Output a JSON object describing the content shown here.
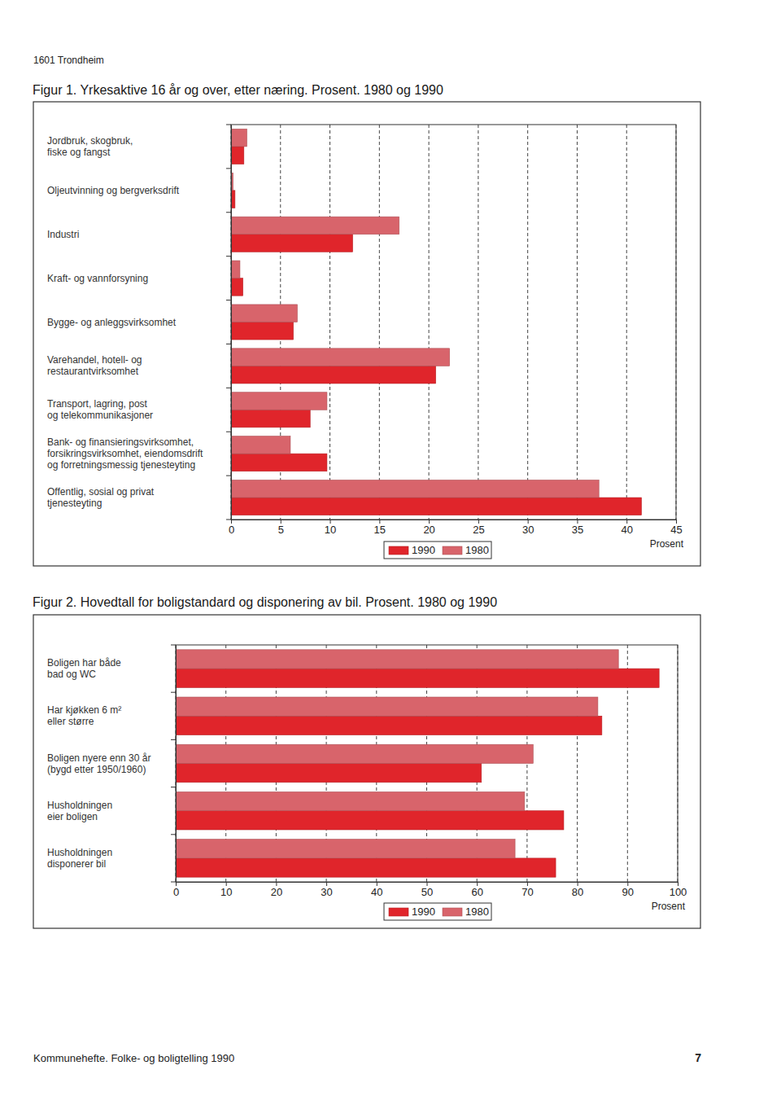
{
  "page": {
    "header": "1601 Trondheim",
    "footer": "Kommunehefte. Folke- og boligtelling 1990",
    "page_number": 7
  },
  "chart_data": [
    {
      "type": "bar",
      "orientation": "horizontal",
      "title": "Figur 1. Yrkesaktive 16 år og over, etter næring. Prosent. 1980 og 1990",
      "x_label": "Prosent",
      "categories": [
        "Jordbruk, skogbruk,\nfiske og fangst",
        "Oljeutvinning og bergverksdrift",
        "Industri",
        "Kraft- og vannforsyning",
        "Bygge- og anleggsvirksomhet",
        "Varehandel, hotell- og\nrestaurantvirksomhet",
        "Transport, lagring, post\nog telekommunikasjoner",
        "Bank- og finansieringsvirksomhet,\nforsikringsvirksomhet, eiendomsdrift\nog forretningsmessig tjenesteyting",
        "Offentlig, sosial og privat\ntjenesteyting"
      ],
      "series": [
        {
          "name": "1990",
          "color": "#e0252b",
          "values": [
            1.3,
            0.4,
            12.3,
            1.2,
            6.3,
            20.7,
            8.0,
            9.7,
            41.5
          ]
        },
        {
          "name": "1980",
          "color": "#d8646b",
          "values": [
            1.6,
            0.2,
            17.0,
            0.9,
            6.7,
            22.1,
            9.7,
            6.0,
            37.2
          ]
        }
      ],
      "xlim": [
        0,
        45
      ],
      "xticks": [
        0,
        5,
        10,
        15,
        20,
        25,
        30,
        35,
        40,
        45
      ],
      "grid": true,
      "legend": "bottom"
    },
    {
      "type": "bar",
      "orientation": "horizontal",
      "title": "Figur 2. Hovedtall for boligstandard og disponering av bil. Prosent. 1980 og 1990",
      "x_label": "Prosent",
      "categories": [
        "Boligen har både\nbad og WC",
        "Har kjøkken 6 m²\neller større",
        "Boligen nyere enn 30 år\n(bygd etter 1950/1960)",
        "Husholdningen\neier boligen",
        "Husholdningen\ndisponerer bil"
      ],
      "series": [
        {
          "name": "1990",
          "color": "#e0252b",
          "values": [
            96.3,
            84.9,
            60.9,
            77.3,
            75.7
          ]
        },
        {
          "name": "1980",
          "color": "#d8646b",
          "values": [
            88.2,
            84.1,
            71.2,
            69.5,
            67.6
          ]
        }
      ],
      "xlim": [
        0,
        100
      ],
      "xticks": [
        0,
        10,
        20,
        30,
        40,
        50,
        60,
        70,
        80,
        90,
        100
      ],
      "grid": true,
      "legend": "bottom"
    }
  ]
}
